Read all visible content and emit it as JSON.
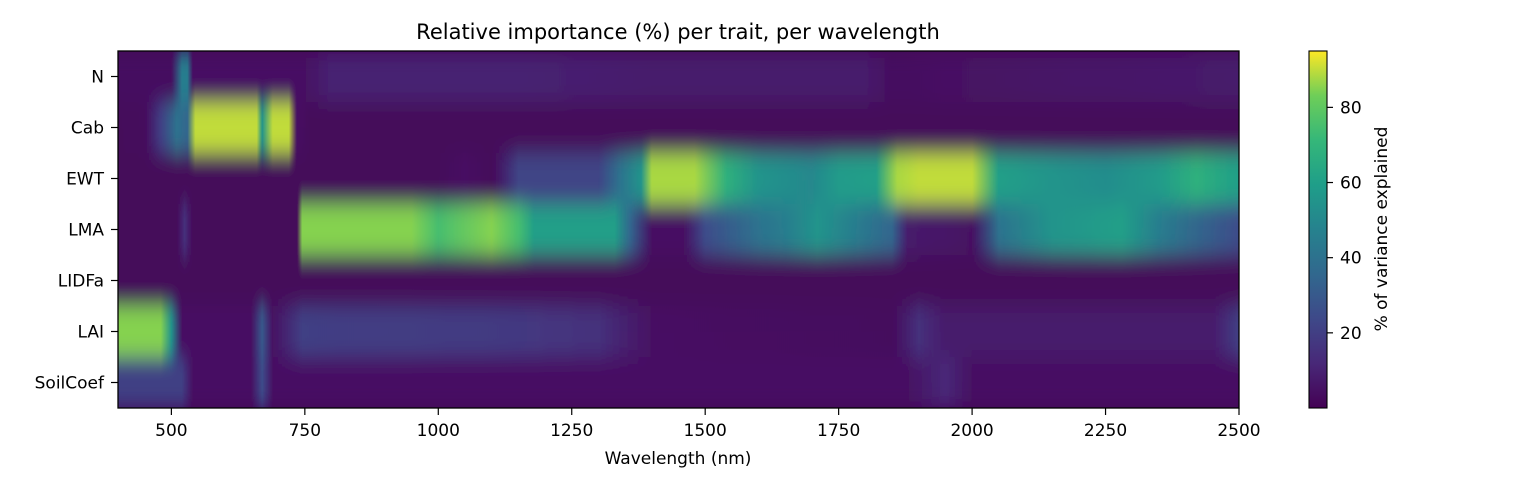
{
  "chart_data": {
    "type": "heatmap",
    "title": "Relative importance (%) per trait, per wavelength",
    "xlabel": "Wavelength (nm)",
    "ylabel": "",
    "xlim": [
      400,
      2500
    ],
    "x_ticks": [
      500,
      750,
      1000,
      1250,
      1500,
      1750,
      2000,
      2250,
      2500
    ],
    "rows": [
      "N",
      "Cab",
      "EWT",
      "LMA",
      "LIDFa",
      "LAI",
      "SoilCoef"
    ],
    "colorbar": {
      "label": "% of variance explained",
      "range": [
        0,
        95
      ],
      "ticks": [
        20,
        40,
        60,
        80
      ]
    },
    "grid": false,
    "legend": "none",
    "colormap": "viridis",
    "rows_data": {
      "N": [
        [
          400,
          4
        ],
        [
          500,
          4
        ],
        [
          520,
          45
        ],
        [
          530,
          45
        ],
        [
          540,
          5
        ],
        [
          750,
          5
        ],
        [
          800,
          10
        ],
        [
          1150,
          10
        ],
        [
          1400,
          8
        ],
        [
          1800,
          8
        ],
        [
          1850,
          4
        ],
        [
          1950,
          5
        ],
        [
          2500,
          8
        ]
      ],
      "Cab": [
        [
          400,
          2
        ],
        [
          450,
          3
        ],
        [
          480,
          20
        ],
        [
          510,
          40
        ],
        [
          530,
          35
        ],
        [
          545,
          90
        ],
        [
          660,
          90
        ],
        [
          670,
          55
        ],
        [
          690,
          90
        ],
        [
          720,
          90
        ],
        [
          735,
          5
        ],
        [
          760,
          2
        ],
        [
          2500,
          2
        ]
      ],
      "EWT": [
        [
          400,
          2
        ],
        [
          1000,
          2
        ],
        [
          1050,
          5
        ],
        [
          1100,
          2
        ],
        [
          1150,
          22
        ],
        [
          1300,
          22
        ],
        [
          1340,
          40
        ],
        [
          1380,
          55
        ],
        [
          1400,
          88
        ],
        [
          1480,
          88
        ],
        [
          1540,
          68
        ],
        [
          1600,
          55
        ],
        [
          1700,
          50
        ],
        [
          1750,
          58
        ],
        [
          1820,
          60
        ],
        [
          1860,
          88
        ],
        [
          1900,
          90
        ],
        [
          2000,
          90
        ],
        [
          2050,
          60
        ],
        [
          2150,
          55
        ],
        [
          2250,
          52
        ],
        [
          2350,
          58
        ],
        [
          2420,
          68
        ],
        [
          2500,
          60
        ]
      ],
      "LMA": [
        [
          400,
          2
        ],
        [
          510,
          2
        ],
        [
          525,
          15
        ],
        [
          540,
          2
        ],
        [
          735,
          2
        ],
        [
          745,
          85
        ],
        [
          950,
          85
        ],
        [
          1000,
          75
        ],
        [
          1100,
          85
        ],
        [
          1150,
          75
        ],
        [
          1180,
          60
        ],
        [
          1330,
          60
        ],
        [
          1360,
          35
        ],
        [
          1400,
          5
        ],
        [
          1460,
          5
        ],
        [
          1500,
          25
        ],
        [
          1600,
          40
        ],
        [
          1650,
          45
        ],
        [
          1710,
          55
        ],
        [
          1780,
          45
        ],
        [
          1850,
          35
        ],
        [
          1880,
          8
        ],
        [
          2000,
          5
        ],
        [
          2050,
          40
        ],
        [
          2150,
          55
        ],
        [
          2280,
          60
        ],
        [
          2350,
          45
        ],
        [
          2500,
          25
        ]
      ],
      "LIDFa": [
        [
          400,
          2
        ],
        [
          2500,
          2
        ]
      ],
      "LAI": [
        [
          400,
          85
        ],
        [
          480,
          85
        ],
        [
          500,
          55
        ],
        [
          520,
          5
        ],
        [
          650,
          5
        ],
        [
          670,
          30
        ],
        [
          690,
          5
        ],
        [
          745,
          20
        ],
        [
          1150,
          18
        ],
        [
          1300,
          15
        ],
        [
          1400,
          5
        ],
        [
          1850,
          3
        ],
        [
          1900,
          15
        ],
        [
          1950,
          8
        ],
        [
          2450,
          8
        ],
        [
          2500,
          20
        ]
      ],
      "SoilCoef": [
        [
          400,
          20
        ],
        [
          520,
          20
        ],
        [
          540,
          5
        ],
        [
          650,
          5
        ],
        [
          670,
          25
        ],
        [
          690,
          5
        ],
        [
          1100,
          5
        ],
        [
          1880,
          5
        ],
        [
          1950,
          12
        ],
        [
          2000,
          5
        ],
        [
          2500,
          5
        ]
      ]
    }
  }
}
